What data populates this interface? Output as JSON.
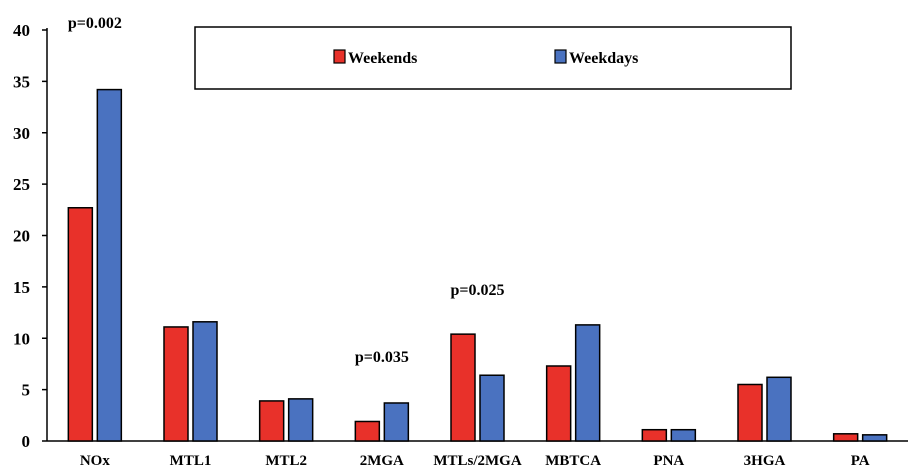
{
  "chart_data": {
    "type": "bar",
    "title": "",
    "xlabel": "",
    "ylabel": "",
    "ylim": [
      0,
      40
    ],
    "yticks": [
      0,
      5,
      10,
      15,
      20,
      25,
      30,
      35,
      40
    ],
    "grid": false,
    "legend_position": "top",
    "categories": [
      "NOx",
      "MTL1",
      "MTL2",
      "2MGA",
      "MTLs/2MGA",
      "MBTCA",
      "PNA",
      "3HGA",
      "PA"
    ],
    "series": [
      {
        "name": "Weekends",
        "color": "#e8312a",
        "values": [
          22.7,
          11.1,
          3.9,
          1.9,
          10.4,
          7.3,
          1.1,
          5.5,
          0.7
        ]
      },
      {
        "name": "Weekdays",
        "color": "#4a72c0",
        "values": [
          34.2,
          11.6,
          4.1,
          3.7,
          6.4,
          11.3,
          1.1,
          6.2,
          0.6
        ]
      }
    ],
    "annotations": [
      {
        "text": "p=0.002",
        "category": "NOx",
        "y": 40
      },
      {
        "text": "p=0.035",
        "category": "2MGA",
        "y": 7.5
      },
      {
        "text": "p=0.025",
        "category": "MTLs/2MGA",
        "y": 14
      }
    ]
  }
}
